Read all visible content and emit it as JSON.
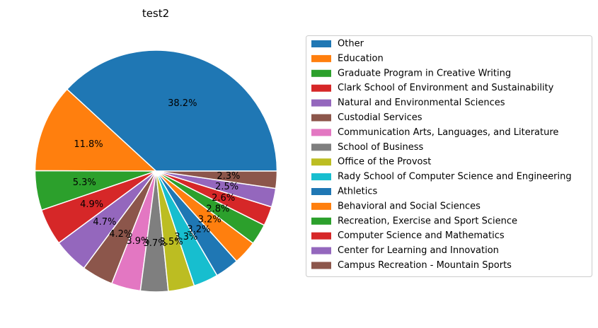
{
  "chart_data": {
    "type": "pie",
    "title": "test2",
    "legend_placement": "right",
    "slices": [
      {
        "label": "Other",
        "value": 38.2,
        "color": "#1f77b4"
      },
      {
        "label": "Education",
        "value": 11.8,
        "color": "#ff7f0e"
      },
      {
        "label": "Graduate Program in Creative Writing",
        "value": 5.3,
        "color": "#2ca02c"
      },
      {
        "label": "Clark School of Environment and Sustainability",
        "value": 4.9,
        "color": "#d62728"
      },
      {
        "label": "Natural and Environmental Sciences",
        "value": 4.7,
        "color": "#9467bd"
      },
      {
        "label": "Custodial Services",
        "value": 4.2,
        "color": "#8c564b"
      },
      {
        "label": "Communication Arts, Languages, and Literature",
        "value": 3.9,
        "color": "#e377c2"
      },
      {
        "label": "School of Business",
        "value": 3.7,
        "color": "#7f7f7f"
      },
      {
        "label": "Office of the Provost",
        "value": 3.5,
        "color": "#bcbd22"
      },
      {
        "label": "Rady School of Computer Science and Engineering",
        "value": 3.3,
        "color": "#17becf"
      },
      {
        "label": "Athletics",
        "value": 3.2,
        "color": "#1f77b4"
      },
      {
        "label": "Behavioral and Social Sciences",
        "value": 3.2,
        "color": "#ff7f0e"
      },
      {
        "label": "Recreation, Exercise and Sport Science",
        "value": 2.8,
        "color": "#2ca02c"
      },
      {
        "label": "Computer Science and Mathematics",
        "value": 2.6,
        "color": "#d62728"
      },
      {
        "label": "Center for Learning and Innovation",
        "value": 2.5,
        "color": "#9467bd"
      },
      {
        "label": "Campus Recreation - Mountain Sports",
        "value": 2.3,
        "color": "#8c564b"
      }
    ]
  }
}
